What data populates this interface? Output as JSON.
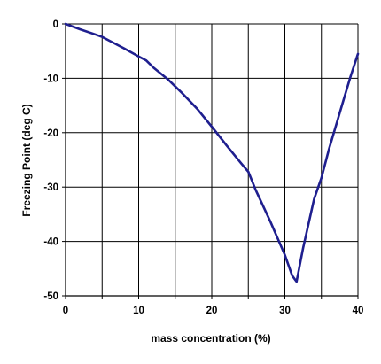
{
  "chart_data": {
    "type": "line",
    "title": "",
    "xlabel": "mass concentration (%)",
    "ylabel": "Freezing Point (deg C)",
    "xlim": [
      0,
      40
    ],
    "ylim": [
      -50,
      0
    ],
    "xticks": [
      "0",
      "10",
      "20",
      "30",
      "40"
    ],
    "yticks": [
      "0",
      "-10",
      "-20",
      "-30",
      "-40",
      "-50"
    ],
    "grid": true,
    "legend": "none",
    "series": [
      {
        "color": "#1f1f8f",
        "x": [
          0,
          2,
          4,
          5,
          6,
          8,
          10,
          11,
          12,
          14,
          16,
          18,
          20,
          22,
          24,
          25,
          26,
          28,
          30,
          31,
          31.6,
          32.5,
          34,
          35,
          36,
          38,
          39,
          40
        ],
        "y": [
          0,
          -1,
          -1.9,
          -2.4,
          -3.1,
          -4.5,
          -6,
          -6.7,
          -8,
          -10.2,
          -12.8,
          -15.6,
          -18.9,
          -22.3,
          -25.6,
          -27.2,
          -30.5,
          -36.3,
          -42.5,
          -46.3,
          -47.4,
          -41.2,
          -32.2,
          -28.3,
          -23.2,
          -14.1,
          -9.6,
          -5.5
        ]
      }
    ]
  }
}
